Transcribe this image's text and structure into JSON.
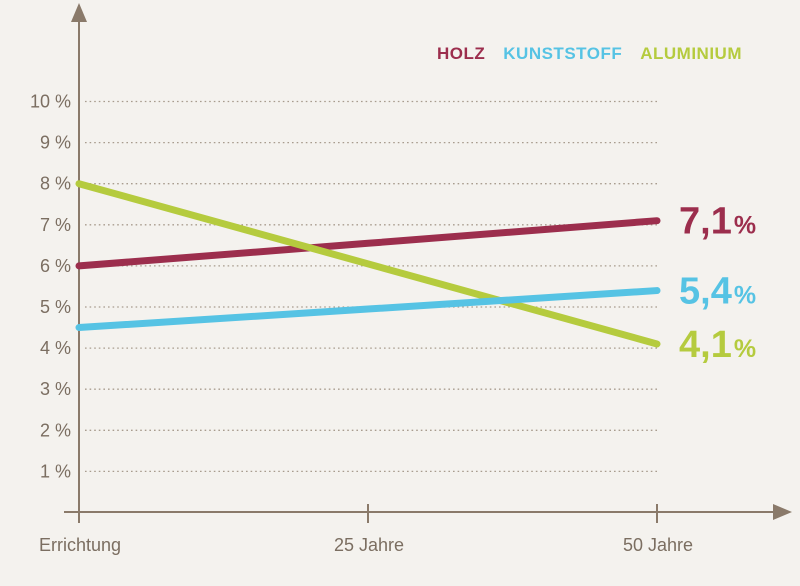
{
  "background_color": "#f4f2ee",
  "axis_color": "#8a7a6a",
  "grid_color": "#a89c8e",
  "tick_label_color": "#7b6e61",
  "legend": {
    "items": [
      {
        "label": "HOLZ",
        "color": "#9c2e4d"
      },
      {
        "label": "KUNSTSTOFF",
        "color": "#56c3e4"
      },
      {
        "label": "ALUMINIUM",
        "color": "#b5cb3e"
      }
    ]
  },
  "chart_data": {
    "type": "line",
    "title": "",
    "xlabel": "",
    "ylabel": "",
    "categories": [
      "Errichtung",
      "25 Jahre",
      "50 Jahre"
    ],
    "series": [
      {
        "name": "HOLZ",
        "color": "#9c2e4d",
        "values": [
          6.0,
          6.55,
          7.1
        ],
        "end_value_label": "7,1",
        "end_value_suffix": "%"
      },
      {
        "name": "KUNSTSTOFF",
        "color": "#56c3e4",
        "values": [
          4.5,
          4.95,
          5.4
        ],
        "end_value_label": "5,4",
        "end_value_suffix": "%"
      },
      {
        "name": "ALUMINIUM",
        "color": "#b5cb3e",
        "values": [
          8.0,
          6.05,
          4.1
        ],
        "end_value_label": "4,1",
        "end_value_suffix": "%"
      }
    ],
    "y_tick_labels": [
      "10 %",
      "9 %",
      "8 %",
      "7 %",
      "6 %",
      "5 %",
      "4 %",
      "3 %",
      "2 %",
      "1 %"
    ],
    "y_tick_values": [
      10,
      9,
      8,
      7,
      6,
      5,
      4,
      3,
      2,
      1
    ],
    "ylim": [
      0,
      10.5
    ],
    "grid": "dotted-horizontal",
    "legend_position": "top-right"
  }
}
